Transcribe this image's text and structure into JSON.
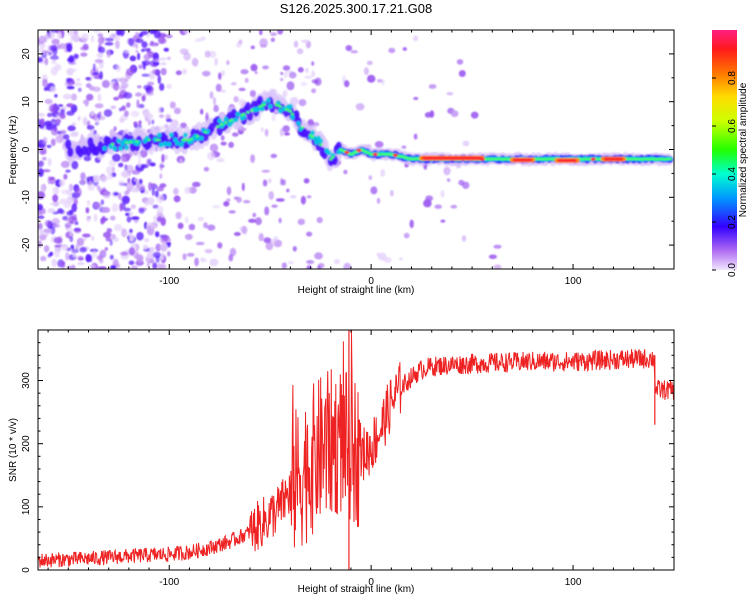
{
  "figure_title": "S126.2025.300.17.21.G08",
  "chart_data": [
    {
      "type": "heatmap",
      "name": "spectrogram",
      "xlabel": "Height of straight line (km)",
      "ylabel": "Frequency (Hz)",
      "xlim": [
        -165,
        150
      ],
      "ylim": [
        -25,
        25
      ],
      "xticks": [
        -100,
        0,
        100
      ],
      "yticks": [
        -20,
        -10,
        0,
        10,
        20
      ],
      "xtick_labels": [
        "-100",
        "0",
        "100"
      ],
      "ytick_labels": [
        "-20",
        "-10",
        "0",
        "10",
        "20"
      ],
      "ridge": {
        "x": [
          -165,
          -150,
          -130,
          -110,
          -100,
          -90,
          -80,
          -70,
          -60,
          -50,
          -45,
          -40,
          -35,
          -30,
          -25,
          -22,
          -20,
          -15,
          -10,
          -5,
          0,
          10,
          20,
          40,
          60,
          80,
          100,
          120,
          150
        ],
        "y": [
          0,
          0,
          1,
          2,
          2,
          2,
          4,
          6,
          8,
          10,
          9,
          8,
          5,
          3,
          1,
          -1,
          -2,
          0,
          -1,
          0,
          -1,
          -1,
          -2,
          -2,
          -2,
          -2,
          -2,
          -2,
          -2
        ]
      },
      "peaks": [
        {
          "x": 40,
          "y": -1.8
        },
        {
          "x": 75,
          "y": -2.2
        },
        {
          "x": 97,
          "y": -2.3
        },
        {
          "x": 120,
          "y": -2.0
        }
      ]
    },
    {
      "type": "colorbar",
      "label": "Normalized spectral amplitude",
      "range": [
        0,
        1
      ],
      "ticks": [
        0.0,
        0.2,
        0.4,
        0.6,
        0.8
      ],
      "tick_labels": [
        "0.0",
        "0.2",
        "0.4",
        "0.6",
        "0.8"
      ]
    },
    {
      "type": "line",
      "name": "snr",
      "xlabel": "Height of straight line (km)",
      "ylabel": "SNR (10 * v/v)",
      "xlim": [
        -165,
        150
      ],
      "ylim": [
        0,
        380
      ],
      "xticks": [
        -100,
        0,
        100
      ],
      "yticks": [
        0,
        100,
        200,
        300
      ],
      "xtick_labels": [
        "-100",
        "0",
        "100"
      ],
      "ytick_labels": [
        "0",
        "100",
        "200",
        "300"
      ],
      "series": [
        {
          "name": "SNR",
          "color": "#ee2222",
          "x": [
            -165,
            -140,
            -120,
            -100,
            -90,
            -80,
            -70,
            -60,
            -50,
            -45,
            -40,
            -35,
            -30,
            -25,
            -20,
            -15,
            -10,
            -5,
            0,
            5,
            10,
            15,
            20,
            25,
            30,
            40,
            60,
            80,
            100,
            120,
            140,
            141,
            144,
            150
          ],
          "y": [
            15,
            18,
            22,
            25,
            28,
            35,
            45,
            60,
            85,
            100,
            125,
            150,
            170,
            190,
            200,
            205,
            195,
            180,
            195,
            225,
            265,
            290,
            305,
            318,
            322,
            325,
            328,
            330,
            330,
            333,
            335,
            285,
            285,
            285
          ]
        }
      ],
      "noise": [
        {
          "x0": -165,
          "x1": -60,
          "amp": 12
        },
        {
          "x0": -60,
          "x1": -40,
          "amp": 40
        },
        {
          "x0": -40,
          "x1": -5,
          "amp": 120
        },
        {
          "x0": -5,
          "x1": 15,
          "amp": 45
        },
        {
          "x0": 15,
          "x1": 150,
          "amp": 16
        }
      ]
    }
  ]
}
